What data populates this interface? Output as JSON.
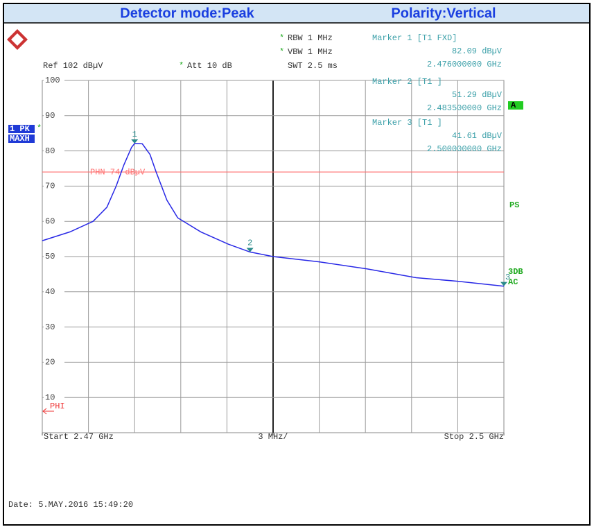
{
  "chart_data": {
    "type": "line",
    "header": [
      "Detector mode:Peak",
      "Polarity:Vertical"
    ],
    "settings": {
      "ref": "Ref 102 dBµV",
      "att": "Att 10 dB",
      "rbw": "RBW 1 MHz",
      "vbw": "VBW 1 MHz",
      "swt": "SWT 2.5 ms",
      "asterisk": "*"
    },
    "x": [
      2.47,
      2.4718,
      2.4733,
      2.4742,
      2.4748,
      2.4753,
      2.4758,
      2.476,
      2.4765,
      2.477,
      2.4774,
      2.4781,
      2.4788,
      2.4803,
      2.4821,
      2.4835,
      2.485,
      2.488,
      2.4911,
      2.4943,
      2.497,
      2.5
    ],
    "series": [
      {
        "name": "1 PK",
        "color": "#2828e6",
        "values": [
          54.5,
          57,
          60,
          64,
          70,
          76,
          81,
          82.1,
          82,
          79,
          74,
          66,
          61,
          57,
          53.5,
          51.3,
          50,
          48.5,
          46.5,
          44,
          43,
          41.6
        ]
      }
    ],
    "trace_mode": "MAXH",
    "xlim": [
      2.47,
      2.5
    ],
    "xticks": [
      {
        "value": 2.47,
        "label": "Start 2.47 GHz"
      },
      {
        "value": 2.485,
        "label": "3 MHz/"
      },
      {
        "value": 2.5,
        "label": "Stop 2.5 GHz"
      }
    ],
    "ylim": [
      0,
      100
    ],
    "yticks": [
      10,
      20,
      30,
      40,
      50,
      60,
      70,
      80,
      90,
      100
    ],
    "grid": true,
    "markers": [
      {
        "name": "1",
        "title": "Marker 1 [T1 FXD]",
        "x": 2.476,
        "x_label": "2.476000000 GHz",
        "y": 82.09,
        "y_label": "82.09 dBµV"
      },
      {
        "name": "2",
        "title": "Marker 2 [T1 ]",
        "x": 2.4835,
        "x_label": "2.483500000 GHz",
        "y": 51.29,
        "y_label": "51.29 dBµV"
      },
      {
        "name": "3",
        "title": "Marker 3 [T1 ]",
        "x": 2.5,
        "x_label": "2.500000000 GHz",
        "y": 41.61,
        "y_label": "41.61 dBµV"
      }
    ],
    "display_line": {
      "label": "PHN 74 dBµV",
      "value": 74,
      "color": "#ff7070"
    },
    "limit_label": "PHI",
    "side_labels": [
      "A",
      "PS",
      "3DB",
      "AC"
    ],
    "date": "Date: 5.MAY.2016  15:49:20"
  }
}
